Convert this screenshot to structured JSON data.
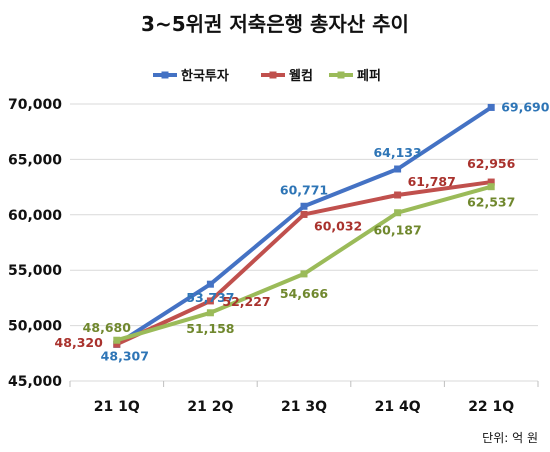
{
  "chart_data": {
    "type": "line",
    "title": "3~5위권 저축은행 총자산 추이",
    "categories": [
      "21 1Q",
      "21 2Q",
      "21 3Q",
      "21 4Q",
      "22 1Q"
    ],
    "series": [
      {
        "name": "한국투자",
        "color": "#4472C4",
        "values": [
          48307,
          53737,
          60771,
          64133,
          69690
        ],
        "labels": [
          "48,307",
          "53,737",
          "60,771",
          "64,133",
          "69,690"
        ]
      },
      {
        "name": "웰컴",
        "color": "#C0504D",
        "values": [
          48320,
          52227,
          60032,
          61787,
          62956
        ],
        "labels": [
          "48,320",
          "52,227",
          "60,032",
          "61,787",
          "62,956"
        ]
      },
      {
        "name": "페퍼",
        "color": "#9BBB59",
        "values": [
          48680,
          51158,
          54666,
          60187,
          62537
        ],
        "labels": [
          "48,680",
          "51,158",
          "54,666",
          "60,187",
          "62,537"
        ]
      }
    ],
    "ylim": [
      45000,
      70000
    ],
    "yticks": [
      45000,
      50000,
      55000,
      60000,
      65000,
      70000
    ],
    "ytick_labels": [
      "45,000",
      "50,000",
      "55,000",
      "60,000",
      "65,000",
      "70,000"
    ],
    "grid": "horizontal",
    "legend_position": "top",
    "unit_note": "단위: 억 원",
    "label_colors": {
      "한국투자": "#2E75B6",
      "웰컴": "#A9322D",
      "페퍼": "#70882E"
    }
  }
}
